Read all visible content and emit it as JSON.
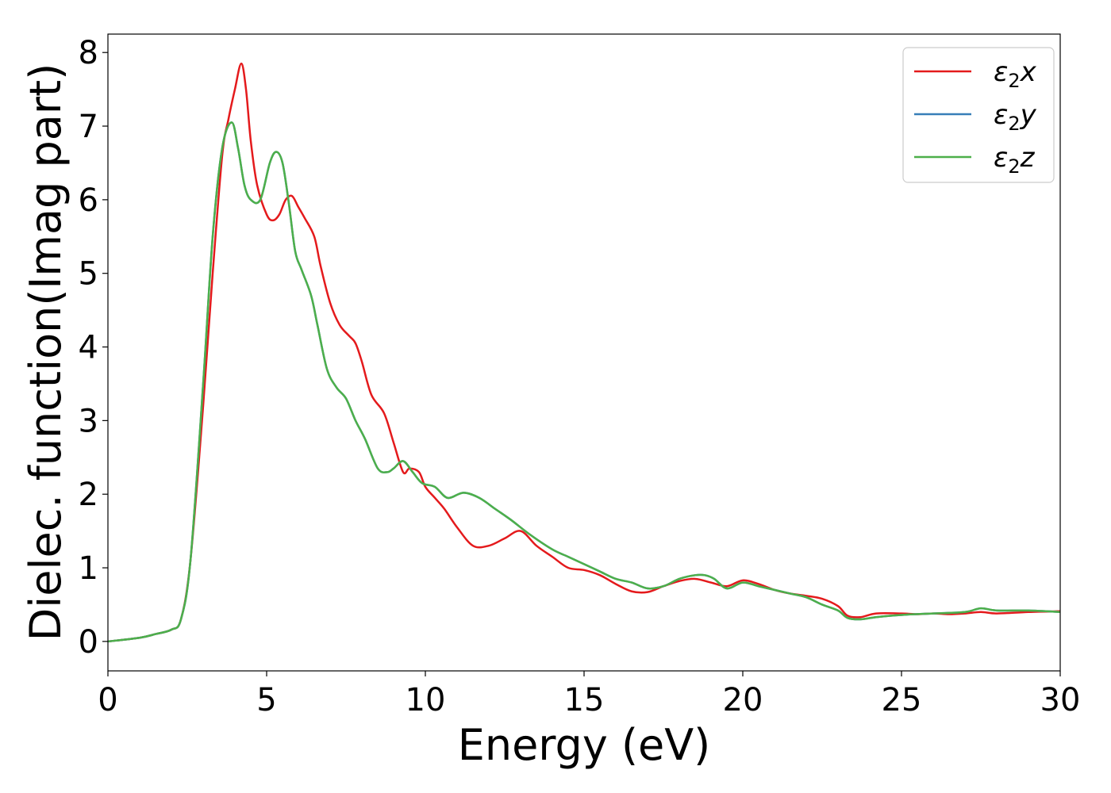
{
  "chart_data": {
    "type": "line",
    "xlabel": "Energy (eV)",
    "ylabel": "Dielec. function(Imag part)",
    "xlim": [
      0,
      30
    ],
    "ylim": [
      -0.4,
      8.25
    ],
    "xticks": [
      0,
      5,
      10,
      15,
      20,
      25,
      30
    ],
    "yticks": [
      0,
      1,
      2,
      3,
      4,
      5,
      6,
      7,
      8
    ],
    "grid": false,
    "legend_position": "top-right",
    "series": [
      {
        "name": "ε₂x",
        "legend": {
          "base": "ε",
          "sub": "2",
          "var": "x"
        },
        "color": "#e41a1c",
        "x": [
          0,
          1,
          1.5,
          2,
          2.3,
          2.6,
          3,
          3.3,
          3.6,
          3.8,
          4,
          4.2,
          4.35,
          4.5,
          4.7,
          5,
          5.2,
          5.4,
          5.6,
          5.8,
          6,
          6.2,
          6.5,
          6.7,
          7,
          7.3,
          7.6,
          7.8,
          8,
          8.3,
          8.7,
          9,
          9.3,
          9.5,
          9.8,
          10,
          10.3,
          10.6,
          11,
          11.5,
          12,
          12.5,
          13,
          13.5,
          14,
          14.5,
          15,
          15.5,
          16,
          16.5,
          17,
          17.5,
          18,
          18.5,
          19,
          19.5,
          20,
          20.5,
          21,
          21.5,
          22,
          22.5,
          23,
          23.3,
          23.7,
          24.2,
          25,
          25.5,
          26,
          26.5,
          27,
          27.5,
          28,
          29,
          30
        ],
        "y": [
          0.0,
          0.05,
          0.1,
          0.16,
          0.3,
          1.1,
          3.2,
          5.0,
          6.6,
          7.1,
          7.5,
          7.85,
          7.5,
          6.8,
          6.2,
          5.8,
          5.72,
          5.8,
          6.0,
          6.05,
          5.9,
          5.75,
          5.5,
          5.1,
          4.6,
          4.3,
          4.15,
          4.05,
          3.8,
          3.35,
          3.1,
          2.7,
          2.3,
          2.35,
          2.3,
          2.1,
          1.95,
          1.8,
          1.55,
          1.3,
          1.3,
          1.4,
          1.5,
          1.3,
          1.15,
          1.0,
          0.97,
          0.9,
          0.78,
          0.68,
          0.67,
          0.75,
          0.82,
          0.85,
          0.8,
          0.75,
          0.83,
          0.78,
          0.7,
          0.65,
          0.62,
          0.58,
          0.48,
          0.35,
          0.33,
          0.38,
          0.38,
          0.37,
          0.38,
          0.37,
          0.38,
          0.4,
          0.38,
          0.4,
          0.41
        ]
      },
      {
        "name": "ε₂y",
        "legend": {
          "base": "ε",
          "sub": "2",
          "var": "y"
        },
        "color": "#377eb8",
        "x": [
          0,
          1,
          1.5,
          2,
          2.3,
          2.6,
          3,
          3.3,
          3.6,
          3.9,
          4.1,
          4.3,
          4.5,
          4.8,
          5.1,
          5.3,
          5.5,
          5.7,
          5.9,
          6.1,
          6.4,
          6.6,
          6.9,
          7.2,
          7.5,
          7.8,
          8.1,
          8.5,
          8.8,
          9.0,
          9.3,
          9.6,
          9.9,
          10.3,
          10.7,
          11.2,
          11.7,
          12.2,
          12.7,
          13.3,
          14,
          14.5,
          15,
          15.5,
          16,
          16.5,
          17,
          17.5,
          18,
          18.5,
          18.8,
          19.1,
          19.5,
          20,
          20.5,
          21,
          21.5,
          22,
          22.5,
          23,
          23.3,
          23.7,
          24.2,
          25,
          26,
          27,
          27.5,
          28,
          29,
          30
        ],
        "y": [
          0.0,
          0.05,
          0.1,
          0.16,
          0.3,
          1.1,
          3.5,
          5.5,
          6.7,
          7.05,
          6.7,
          6.2,
          6.0,
          6.0,
          6.5,
          6.65,
          6.5,
          5.95,
          5.3,
          5.05,
          4.7,
          4.3,
          3.7,
          3.45,
          3.3,
          3.0,
          2.75,
          2.35,
          2.3,
          2.35,
          2.45,
          2.3,
          2.15,
          2.1,
          1.95,
          2.02,
          1.95,
          1.8,
          1.65,
          1.45,
          1.25,
          1.15,
          1.05,
          0.95,
          0.85,
          0.8,
          0.72,
          0.75,
          0.85,
          0.9,
          0.9,
          0.85,
          0.72,
          0.8,
          0.75,
          0.7,
          0.65,
          0.6,
          0.5,
          0.42,
          0.32,
          0.3,
          0.33,
          0.36,
          0.38,
          0.4,
          0.45,
          0.42,
          0.42,
          0.4
        ]
      },
      {
        "name": "ε₂z",
        "legend": {
          "base": "ε",
          "sub": "2",
          "var": "z"
        },
        "color": "#4daf4a",
        "x": [
          0,
          1,
          1.5,
          2,
          2.3,
          2.6,
          3,
          3.3,
          3.6,
          3.9,
          4.1,
          4.3,
          4.5,
          4.8,
          5.1,
          5.3,
          5.5,
          5.7,
          5.9,
          6.1,
          6.4,
          6.6,
          6.9,
          7.2,
          7.5,
          7.8,
          8.1,
          8.5,
          8.8,
          9.0,
          9.3,
          9.6,
          9.9,
          10.3,
          10.7,
          11.2,
          11.7,
          12.2,
          12.7,
          13.3,
          14,
          14.5,
          15,
          15.5,
          16,
          16.5,
          17,
          17.5,
          18,
          18.5,
          18.8,
          19.1,
          19.5,
          20,
          20.5,
          21,
          21.5,
          22,
          22.5,
          23,
          23.3,
          23.7,
          24.2,
          25,
          26,
          27,
          27.5,
          28,
          29,
          30
        ],
        "y": [
          0.0,
          0.05,
          0.1,
          0.16,
          0.3,
          1.1,
          3.5,
          5.5,
          6.7,
          7.05,
          6.7,
          6.2,
          6.0,
          6.0,
          6.5,
          6.65,
          6.5,
          5.95,
          5.3,
          5.05,
          4.7,
          4.3,
          3.7,
          3.45,
          3.3,
          3.0,
          2.75,
          2.35,
          2.3,
          2.35,
          2.45,
          2.3,
          2.15,
          2.1,
          1.95,
          2.02,
          1.95,
          1.8,
          1.65,
          1.45,
          1.25,
          1.15,
          1.05,
          0.95,
          0.85,
          0.8,
          0.72,
          0.75,
          0.85,
          0.9,
          0.9,
          0.85,
          0.72,
          0.8,
          0.75,
          0.7,
          0.65,
          0.6,
          0.5,
          0.42,
          0.32,
          0.3,
          0.33,
          0.36,
          0.38,
          0.4,
          0.45,
          0.42,
          0.42,
          0.4
        ]
      }
    ]
  }
}
